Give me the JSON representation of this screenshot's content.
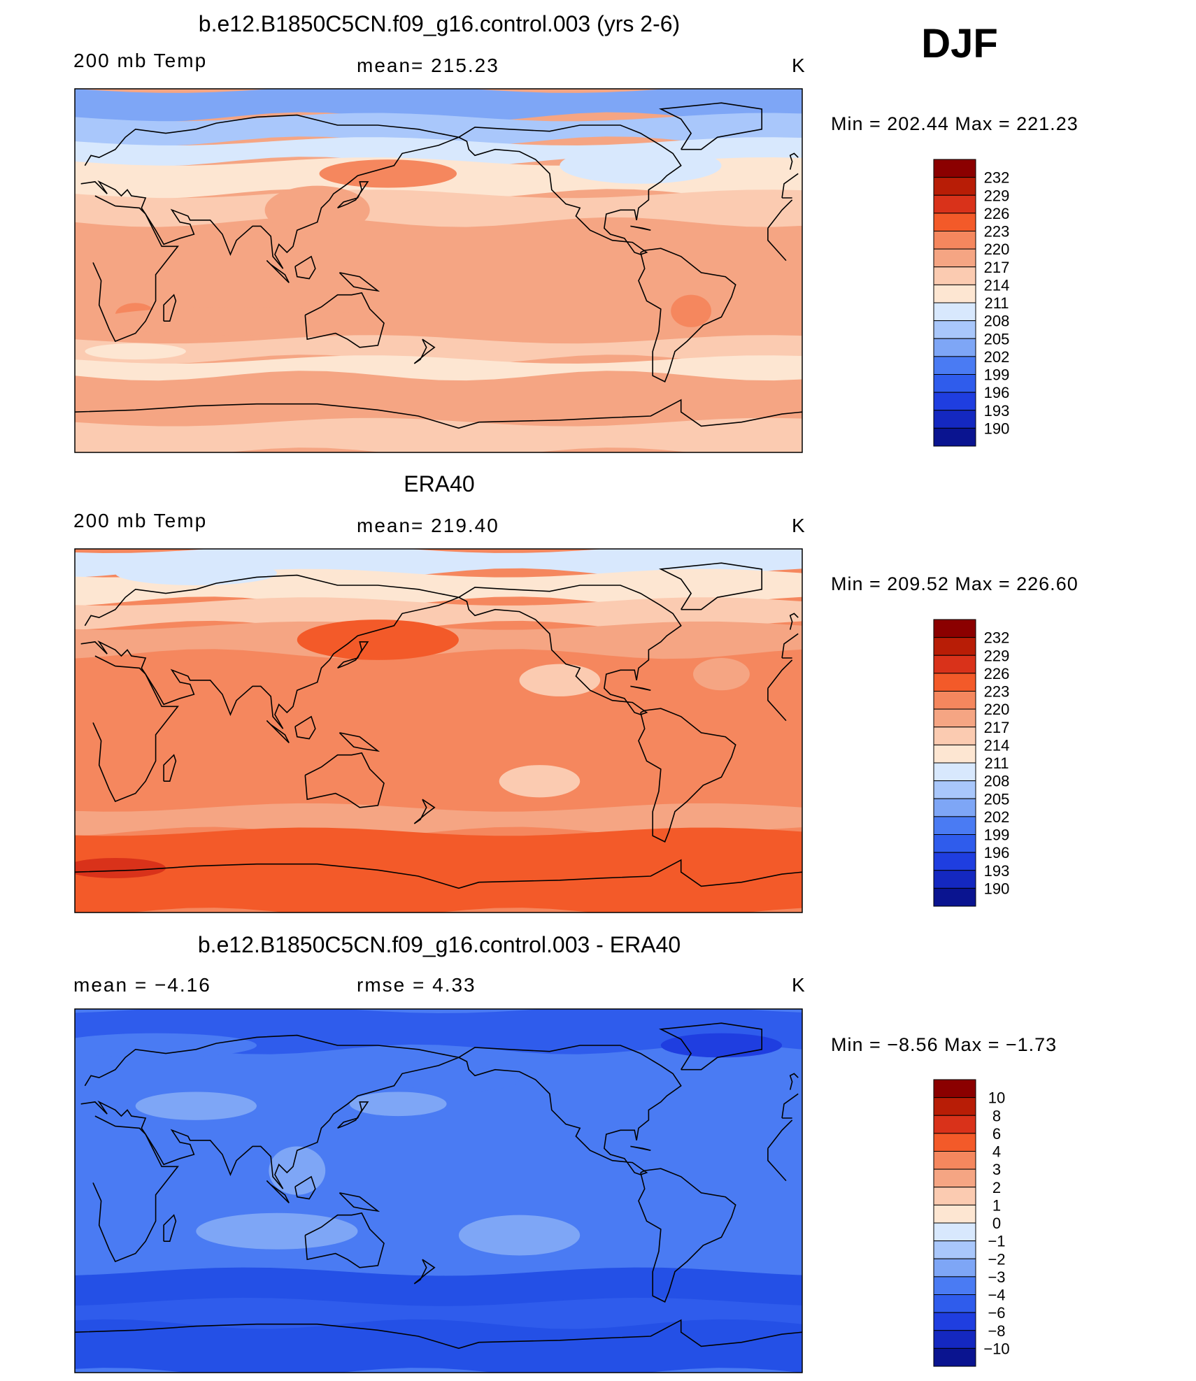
{
  "season": "DJF",
  "panels": [
    {
      "id": "model",
      "title": "b.e12.B1850C5CN.f09_g16.control.003 (yrs 2-6)",
      "left_label": "200 mb Temp",
      "center_label": "mean=  215.23",
      "right_label": "K",
      "minmax": "Min  =  202.44  Max  =  221.23",
      "colorbar_labels": [
        "232",
        "229",
        "226",
        "223",
        "220",
        "217",
        "214",
        "211",
        "208",
        "205",
        "202",
        "199",
        "196",
        "193",
        "190"
      ],
      "base_color": "#f5a583",
      "field": {
        "bands": [
          {
            "lat_top": 90,
            "lat_bottom": 76,
            "color": "#7ea6f6"
          },
          {
            "lat_top": 76,
            "lat_bottom": 64,
            "color": "#a9c7fb"
          },
          {
            "lat_top": 64,
            "lat_bottom": 54,
            "color": "#d8e8fd"
          },
          {
            "lat_top": 54,
            "lat_bottom": 38,
            "color": "#fde6d2"
          },
          {
            "lat_top": 38,
            "lat_bottom": 24,
            "color": "#fbcbb1"
          },
          {
            "lat_top": -34,
            "lat_bottom": -44,
            "color": "#fbcbb1"
          },
          {
            "lat_top": -44,
            "lat_bottom": -52,
            "color": "#fde6d2"
          },
          {
            "lat_top": -75,
            "lat_bottom": -90,
            "color": "#fbcbb1"
          }
        ],
        "blobs": [
          {
            "lon": 155,
            "lat": 48,
            "rx": 34,
            "ry": 7,
            "color": "#f5875e"
          },
          {
            "lon": 120,
            "lat": 30,
            "rx": 26,
            "ry": 12,
            "color": "#f5a583"
          },
          {
            "lon": -80,
            "lat": 52,
            "rx": 40,
            "ry": 9,
            "color": "#d8e8fd"
          },
          {
            "lon": 30,
            "lat": -22,
            "rx": 10,
            "ry": 6,
            "color": "#f5875e"
          },
          {
            "lon": -55,
            "lat": -20,
            "rx": 10,
            "ry": 8,
            "color": "#f5875e"
          },
          {
            "lon": 80,
            "lat": -25,
            "rx": 70,
            "ry": 7,
            "color": "#f5a583"
          },
          {
            "lon": 30,
            "lat": -40,
            "rx": 25,
            "ry": 4,
            "color": "#fde6d2"
          }
        ]
      }
    },
    {
      "id": "obs",
      "title": "ERA40",
      "left_label": "200 mb Temp",
      "center_label": "mean=  219.40",
      "right_label": "K",
      "minmax": "Min  =  209.52  Max  =  226.60",
      "colorbar_labels": [
        "232",
        "229",
        "226",
        "223",
        "220",
        "217",
        "214",
        "211",
        "208",
        "205",
        "202",
        "199",
        "196",
        "193",
        "190"
      ],
      "base_color": "#f5875e",
      "field": {
        "bands": [
          {
            "lat_top": 90,
            "lat_bottom": 78,
            "color": "#d8e8fd"
          },
          {
            "lat_top": 78,
            "lat_bottom": 64,
            "color": "#fde6d2"
          },
          {
            "lat_top": 64,
            "lat_bottom": 52,
            "color": "#fbcbb1"
          },
          {
            "lat_top": 52,
            "lat_bottom": 38,
            "color": "#f5a583"
          },
          {
            "lat_top": -38,
            "lat_bottom": -50,
            "color": "#f5a583"
          },
          {
            "lat_top": -50,
            "lat_bottom": -90,
            "color": "#f35a29"
          }
        ],
        "blobs": [
          {
            "lon": 60,
            "lat": 78,
            "rx": 40,
            "ry": 6,
            "color": "#d8e8fd"
          },
          {
            "lon": 150,
            "lat": 45,
            "rx": 40,
            "ry": 10,
            "color": "#f35a29"
          },
          {
            "lon": -120,
            "lat": 25,
            "rx": 20,
            "ry": 8,
            "color": "#fbcbb1"
          },
          {
            "lon": -130,
            "lat": -25,
            "rx": 20,
            "ry": 8,
            "color": "#fbcbb1"
          },
          {
            "lon": 20,
            "lat": -68,
            "rx": 25,
            "ry": 5,
            "color": "#d9321a"
          },
          {
            "lon": -40,
            "lat": 28,
            "rx": 14,
            "ry": 8,
            "color": "#f5a583"
          }
        ]
      }
    },
    {
      "id": "diff",
      "title": "b.e12.B1850C5CN.f09_g16.control.003 - ERA40",
      "left_label": "mean  =     −4.16",
      "center_label": "rmse  =      4.33",
      "right_label": "K",
      "minmax": "Min  =     −8.56  Max  =     −1.73",
      "colorbar_labels": [
        "10",
        "8",
        "6",
        "4",
        "3",
        "2",
        "1",
        "0",
        "−1",
        "−2",
        "−3",
        "−4",
        "−6",
        "−8",
        "−10"
      ],
      "base_color": "#4a7bf3",
      "field": {
        "bands": [
          {
            "lat_top": 90,
            "lat_bottom": 70,
            "color": "#2f5cec"
          },
          {
            "lat_top": -40,
            "lat_bottom": -90,
            "color": "#2450e6"
          },
          {
            "lat_top": -55,
            "lat_bottom": -66,
            "color": "#2f5cec"
          }
        ],
        "blobs": [
          {
            "lon": 60,
            "lat": 42,
            "rx": 30,
            "ry": 7,
            "color": "#7ea6f6"
          },
          {
            "lon": 160,
            "lat": 43,
            "rx": 24,
            "ry": 6,
            "color": "#7ea6f6"
          },
          {
            "lon": 110,
            "lat": 10,
            "rx": 14,
            "ry": 12,
            "color": "#7ea6f6"
          },
          {
            "lon": 100,
            "lat": -20,
            "rx": 40,
            "ry": 9,
            "color": "#7ea6f6"
          },
          {
            "lon": -140,
            "lat": -22,
            "rx": 30,
            "ry": 10,
            "color": "#7ea6f6"
          },
          {
            "lon": 40,
            "lat": 72,
            "rx": 50,
            "ry": 6,
            "color": "#4a7bf3"
          },
          {
            "lon": -40,
            "lat": 72,
            "rx": 30,
            "ry": 6,
            "color": "#1f3ee0"
          },
          {
            "lon": -170,
            "lat": 55,
            "rx": 30,
            "ry": 6,
            "color": "#4a7bf3"
          }
        ]
      }
    }
  ],
  "palettes": {
    "temp": [
      "#8b0000",
      "#b81d06",
      "#d9321a",
      "#f35a29",
      "#f5875e",
      "#f5a583",
      "#fbcbb1",
      "#fde6d2",
      "#d8e8fd",
      "#a9c7fb",
      "#7ea6f6",
      "#4a7bf3",
      "#2f5cec",
      "#1f3ee0",
      "#1428c0",
      "#0a1490"
    ],
    "diff": [
      "#8b0000",
      "#b81d06",
      "#d9321a",
      "#f35a29",
      "#f5875e",
      "#f5a583",
      "#fbcbb1",
      "#fde6d2",
      "#d8e8fd",
      "#a9c7fb",
      "#7ea6f6",
      "#4a7bf3",
      "#2f5cec",
      "#1f3ee0",
      "#1428c0",
      "#0a1490"
    ]
  }
}
